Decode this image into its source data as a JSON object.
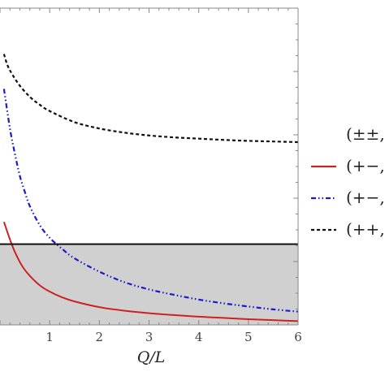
{
  "chart_data": {
    "type": "line",
    "xlabel": "Q/L",
    "ylabel": "",
    "xlim": [
      0,
      6
    ],
    "x_ticks": [
      "1",
      "2",
      "3",
      "4",
      "5",
      "6"
    ],
    "y_range_visible": [
      0,
      1
    ],
    "grid": false,
    "frame": "top, right and bottom axes with tick marks; left edge cropped",
    "legend_placement": "right, outside plot (cropped)",
    "threshold_line": {
      "y": 0.255,
      "color": "#000000",
      "style": "solid"
    },
    "shaded_region": {
      "from_y": 0,
      "to_y": 0.255,
      "color": "#d0d0d0"
    },
    "series": [
      {
        "legend_text": "(+−,",
        "color": "#cc2222",
        "style": "solid",
        "x": [
          0.08,
          0.2,
          0.3,
          0.45,
          0.6,
          0.8,
          1.0,
          1.25,
          1.5,
          2.0,
          2.5,
          3.0,
          3.5,
          4.0,
          4.5,
          5.0,
          5.5,
          6.0
        ],
        "y": [
          0.325,
          0.27,
          0.23,
          0.185,
          0.155,
          0.125,
          0.105,
          0.087,
          0.074,
          0.056,
          0.045,
          0.037,
          0.031,
          0.026,
          0.022,
          0.018,
          0.015,
          0.012
        ]
      },
      {
        "legend_text": "(+−,",
        "color": "#1a1acc",
        "style": "dash-dot-dot",
        "x": [
          0.08,
          0.2,
          0.3,
          0.4,
          0.5,
          0.6,
          0.8,
          1.0,
          1.25,
          1.5,
          2.0,
          2.5,
          3.0,
          3.5,
          4.0,
          4.5,
          5.0,
          5.5,
          6.0
        ],
        "y": [
          0.745,
          0.62,
          0.54,
          0.47,
          0.42,
          0.375,
          0.315,
          0.275,
          0.24,
          0.21,
          0.168,
          0.135,
          0.112,
          0.095,
          0.08,
          0.068,
          0.058,
          0.049,
          0.042
        ]
      },
      {
        "legend_text": "(++,",
        "color": "#111111",
        "style": "dashed",
        "x": [
          0.08,
          0.15,
          0.25,
          0.4,
          0.6,
          0.8,
          1.0,
          1.5,
          2.0,
          2.5,
          3.0,
          3.5,
          4.0,
          4.5,
          5.0,
          5.5,
          6.0
        ],
        "y": [
          0.855,
          0.82,
          0.79,
          0.755,
          0.72,
          0.695,
          0.675,
          0.64,
          0.62,
          0.607,
          0.598,
          0.592,
          0.588,
          0.584,
          0.581,
          0.579,
          0.577
        ]
      }
    ],
    "legend": [
      {
        "text": "(±±,",
        "color": "",
        "style": "none"
      },
      {
        "text": "(+−,",
        "color": "#cc2222",
        "style": "solid"
      },
      {
        "text": "(+−,",
        "color": "#1a1acc",
        "style": "dash-dot-dot"
      },
      {
        "text": "(++,",
        "color": "#111111",
        "style": "dashed"
      }
    ]
  }
}
